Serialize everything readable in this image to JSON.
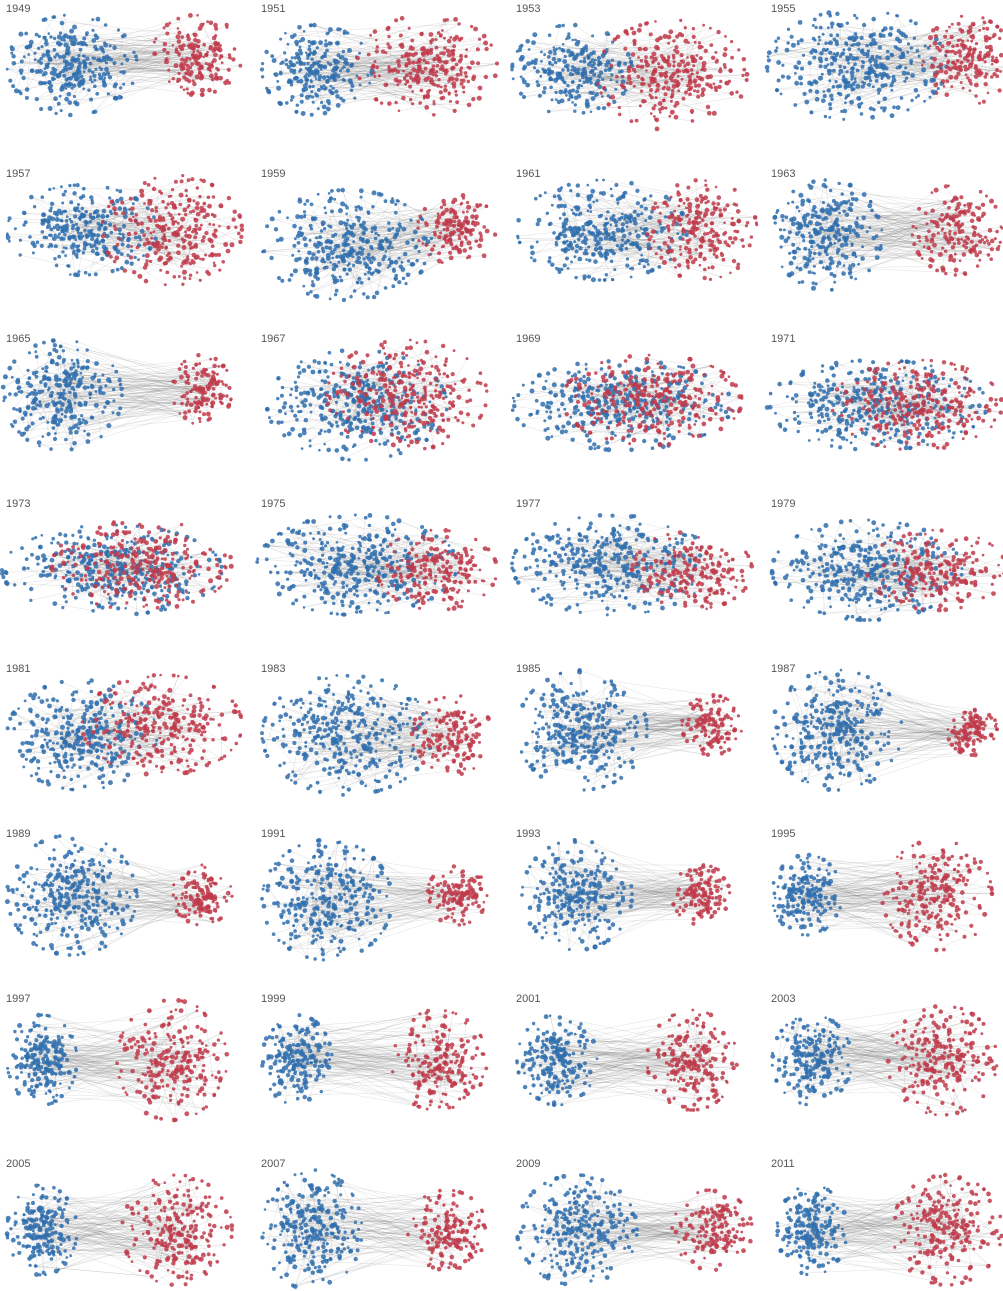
{
  "panels": [
    {
      "label": "1949"
    },
    {
      "label": "1951"
    },
    {
      "label": "1953"
    },
    {
      "label": "1955"
    },
    {
      "label": "1957"
    },
    {
      "label": "1959"
    },
    {
      "label": "1961"
    },
    {
      "label": "1963"
    },
    {
      "label": "1965"
    },
    {
      "label": "1967"
    },
    {
      "label": "1969"
    },
    {
      "label": "1971"
    },
    {
      "label": "1973"
    },
    {
      "label": "1975"
    },
    {
      "label": "1977"
    },
    {
      "label": "1979"
    },
    {
      "label": "1981"
    },
    {
      "label": "1983"
    },
    {
      "label": "1985"
    },
    {
      "label": "1987"
    },
    {
      "label": "1989"
    },
    {
      "label": "1991"
    },
    {
      "label": "1993"
    },
    {
      "label": "1995"
    },
    {
      "label": "1997"
    },
    {
      "label": "1999"
    },
    {
      "label": "2001"
    },
    {
      "label": "2003"
    },
    {
      "label": "2005"
    },
    {
      "label": "2007"
    },
    {
      "label": "2009"
    },
    {
      "label": "2011"
    }
  ]
}
